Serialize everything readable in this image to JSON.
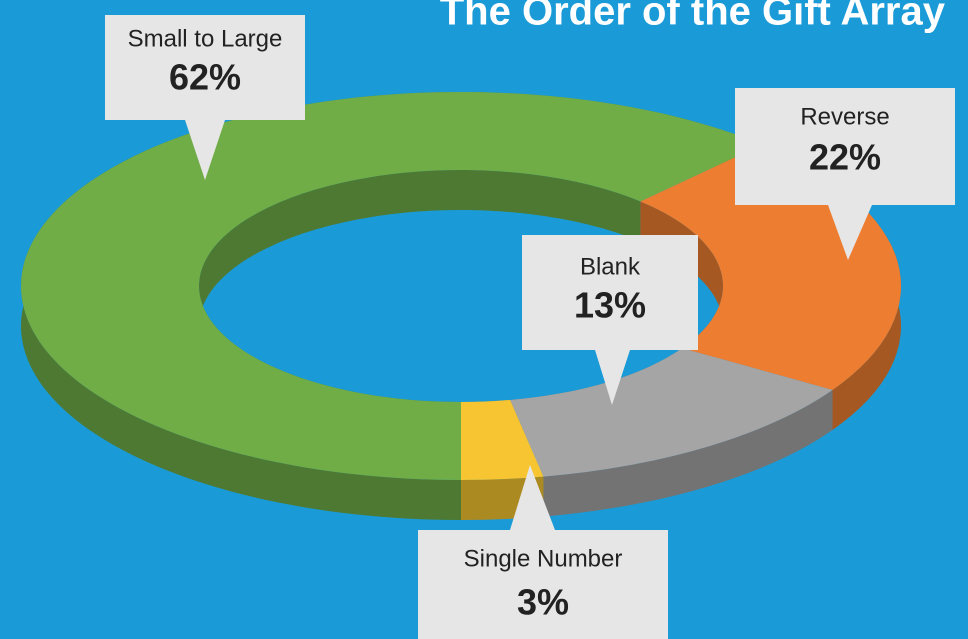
{
  "chart_data": {
    "type": "donut3d",
    "title": "The Order of the Gift Array",
    "categories": [
      "Small to Large",
      "Reverse",
      "Blank",
      "Single Number"
    ],
    "values": [
      62,
      22,
      13,
      3
    ],
    "value_labels": [
      "62%",
      "22%",
      "13%",
      "3%"
    ],
    "colors": [
      "#70ad47",
      "#ed7d31",
      "#a5a5a5",
      "#f6c531"
    ]
  }
}
